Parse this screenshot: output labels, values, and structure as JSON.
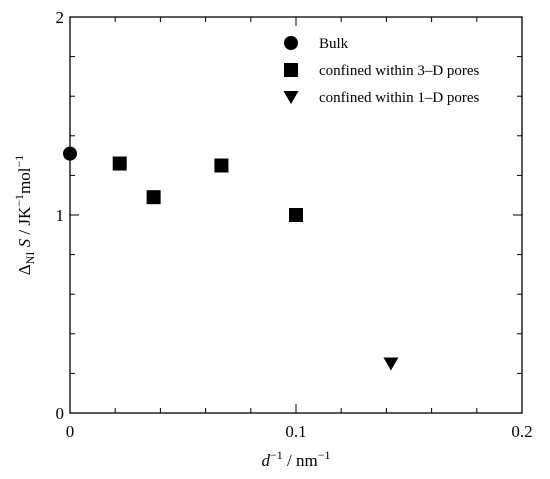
{
  "chart_data": {
    "type": "scatter",
    "xlim": [
      0,
      0.2
    ],
    "ylim": [
      0,
      2
    ],
    "x_ticks": [
      {
        "value": 0,
        "label": "0"
      },
      {
        "value": 0.1,
        "label": "0.1"
      },
      {
        "value": 0.2,
        "label": "0.2"
      }
    ],
    "y_ticks": [
      {
        "value": 0,
        "label": "0"
      },
      {
        "value": 1,
        "label": "1"
      },
      {
        "value": 2,
        "label": "2"
      }
    ],
    "x_minor_step": 0.02,
    "y_minor_step": 0.2,
    "xlabel": "d−1 / nm−1",
    "ylabel": "ΔNI S / JK−1mol−1",
    "legend_position": "top-right",
    "grid": false,
    "series": [
      {
        "name": "Bulk",
        "marker": "circle",
        "color": "#000000",
        "points": [
          {
            "x": 0.0,
            "y": 1.31
          }
        ]
      },
      {
        "name": "confined within 3–D pores",
        "marker": "square",
        "color": "#000000",
        "points": [
          {
            "x": 0.022,
            "y": 1.26
          },
          {
            "x": 0.037,
            "y": 1.09
          },
          {
            "x": 0.067,
            "y": 1.25
          },
          {
            "x": 0.1,
            "y": 1.0
          }
        ]
      },
      {
        "name": "confined within 1–D pores",
        "marker": "triangle-down",
        "color": "#000000",
        "points": [
          {
            "x": 0.142,
            "y": 0.25
          }
        ]
      }
    ]
  }
}
